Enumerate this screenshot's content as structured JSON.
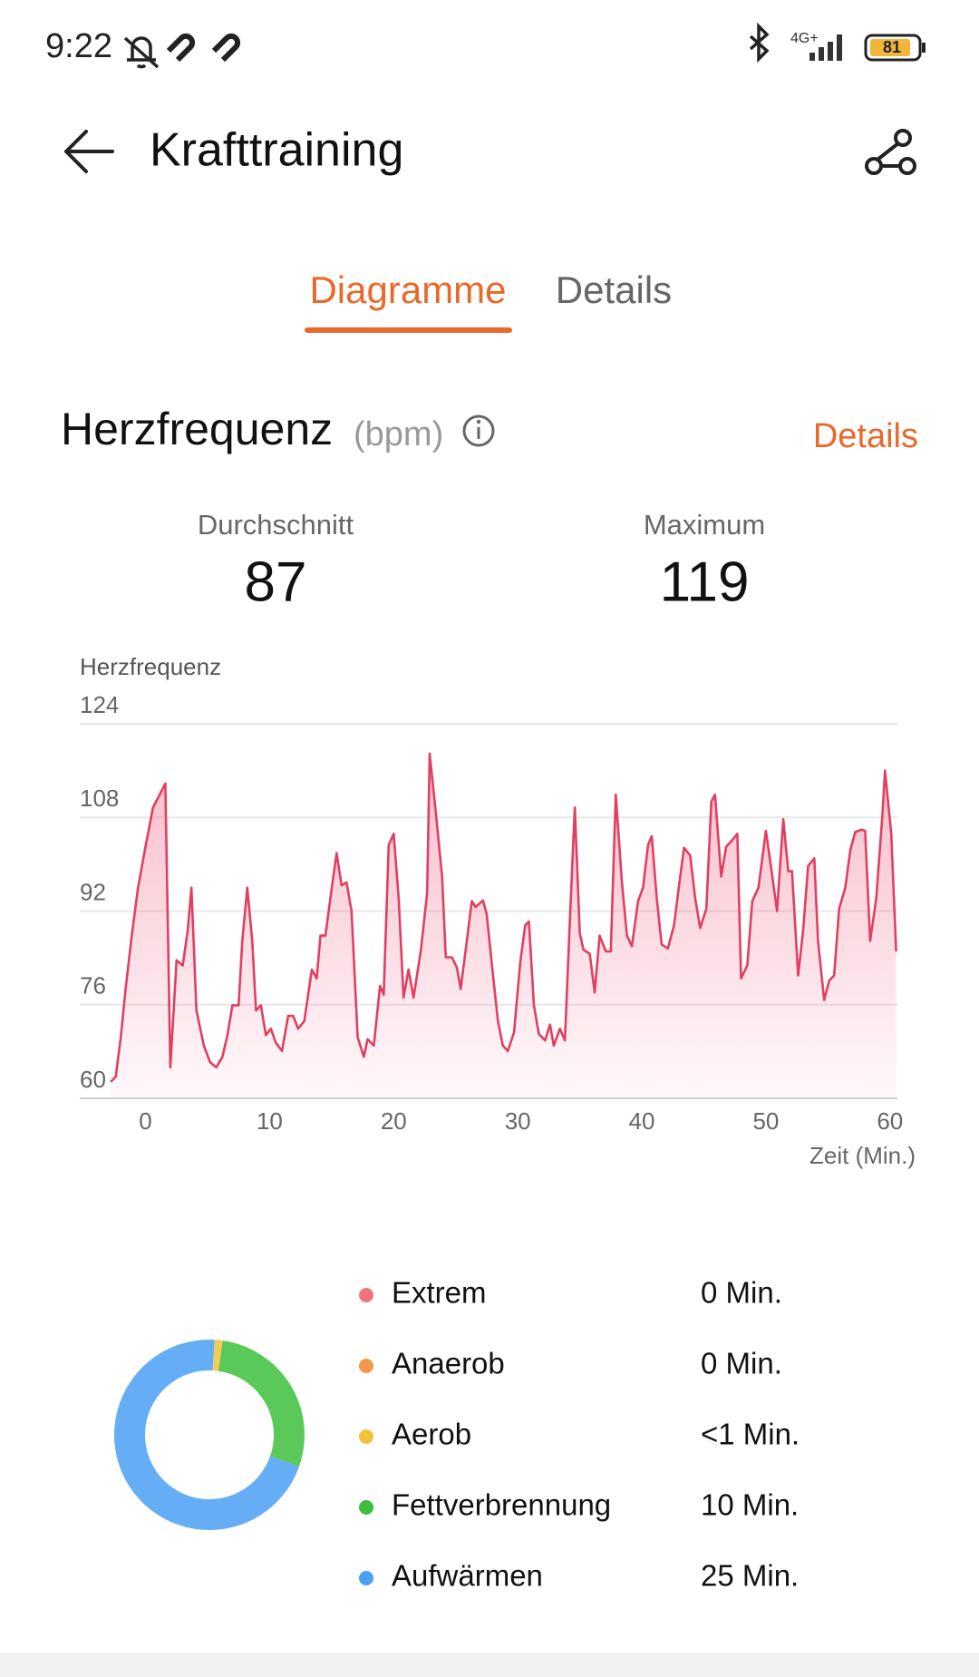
{
  "status_bar": {
    "time": "9:22",
    "network": "4G+",
    "battery": "81"
  },
  "header": {
    "title": "Krafttraining"
  },
  "tabs": [
    "Diagramme",
    "Details"
  ],
  "section": {
    "title": "Herzfrequenz",
    "unit": "(bpm)",
    "link": "Details"
  },
  "stats": [
    {
      "label": "Durchschnitt",
      "value": 87
    },
    {
      "label": "Maximum",
      "value": 119
    }
  ],
  "chart_data": [
    {
      "type": "line",
      "y_label": "Herzfrequenz",
      "x_label": "Zeit (Min.)",
      "color": "#e0405f",
      "xlim": [
        -5.3,
        60.6
      ],
      "ylim": [
        60,
        124
      ],
      "xticks": [
        0,
        10,
        20,
        30,
        40,
        50,
        60
      ],
      "yticks": [
        60,
        76,
        92,
        108,
        124
      ],
      "grid": true,
      "x": [
        -2.8,
        -2.4,
        -2.0,
        -1.6,
        -1.1,
        -0.6,
        0.0,
        0.6,
        1.6,
        2.0,
        2.5,
        3.0,
        3.4,
        3.7,
        4.1,
        4.7,
        5.2,
        5.7,
        6.2,
        6.6,
        7.0,
        7.5,
        7.8,
        8.2,
        8.6,
        8.9,
        9.3,
        9.7,
        10.1,
        10.5,
        11.0,
        11.5,
        11.9,
        12.3,
        12.8,
        13.4,
        13.8,
        14.1,
        14.5,
        14.9,
        15.4,
        15.8,
        16.2,
        16.6,
        17.1,
        17.6,
        17.9,
        18.4,
        18.9,
        19.2,
        19.6,
        20.0,
        20.4,
        20.8,
        21.2,
        21.6,
        22.2,
        22.7,
        22.9,
        23.4,
        23.9,
        24.2,
        24.7,
        25.1,
        25.4,
        25.9,
        26.3,
        26.6,
        27.2,
        27.5,
        27.9,
        28.4,
        28.8,
        29.2,
        29.7,
        30.2,
        30.6,
        30.9,
        31.3,
        31.7,
        32.2,
        32.6,
        32.9,
        33.4,
        33.8,
        34.2,
        34.6,
        35.0,
        35.3,
        35.8,
        36.2,
        36.6,
        37.1,
        37.5,
        37.9,
        38.4,
        38.8,
        39.2,
        39.7,
        40.1,
        40.5,
        40.8,
        41.2,
        41.6,
        42.1,
        42.6,
        43.0,
        43.4,
        43.9,
        44.3,
        44.7,
        45.2,
        45.6,
        45.9,
        46.4,
        46.8,
        47.2,
        47.7,
        48.0,
        48.5,
        48.9,
        49.4,
        50.0,
        50.4,
        50.9,
        51.4,
        51.8,
        52.1,
        52.6,
        53.0,
        53.4,
        53.9,
        54.2,
        54.7,
        55.1,
        55.5,
        55.9,
        56.4,
        56.8,
        57.2,
        57.7,
        58.0,
        58.4,
        58.9,
        59.4,
        59.6,
        60.1,
        60.5
      ],
      "values": [
        62.8,
        63.7,
        70.4,
        78.7,
        88.0,
        96.0,
        103,
        109.7,
        113.8,
        65.3,
        83.6,
        82.7,
        88.7,
        96,
        75,
        69,
        66.2,
        65.3,
        67.1,
        70.8,
        75.9,
        75.9,
        86.9,
        96,
        86.9,
        75,
        75.9,
        70.8,
        71.9,
        69.5,
        68.1,
        74.1,
        74.1,
        71.9,
        73.2,
        82,
        80.5,
        87.8,
        87.8,
        94.2,
        101.9,
        96.4,
        96.9,
        92,
        70.4,
        67.1,
        70.1,
        69,
        79.2,
        77.7,
        103.3,
        105.2,
        94.2,
        77.2,
        82,
        77.2,
        85.4,
        95.1,
        118.9,
        108.8,
        97.9,
        84.1,
        84.1,
        82.3,
        78.7,
        86.9,
        93.7,
        92.7,
        93.8,
        91.5,
        83.2,
        73.2,
        69,
        68.1,
        71.3,
        83.2,
        89.6,
        90.2,
        75.9,
        71,
        69.9,
        72.6,
        69,
        71.9,
        69.9,
        90.5,
        109.7,
        88.2,
        85.4,
        84.7,
        78.1,
        87.8,
        85.1,
        85.1,
        111.9,
        96.9,
        87.8,
        86,
        93.7,
        96,
        103.3,
        104.8,
        94.2,
        86.3,
        85.6,
        89.6,
        96.4,
        102.8,
        101.5,
        94.2,
        89.1,
        92.4,
        110.7,
        111.9,
        97.9,
        103,
        103.9,
        105.2,
        80.5,
        82.7,
        93.7,
        96,
        105.7,
        99.7,
        92,
        107.7,
        98.8,
        98.8,
        81,
        88.7,
        99.7,
        101,
        86.9,
        76.8,
        80.1,
        81,
        92.4,
        96,
        102.4,
        105.5,
        105.9,
        105.7,
        86.9,
        94.2,
        108.8,
        116,
        105.2,
        85.1
      ]
    },
    {
      "type": "pie",
      "categories": [
        "Extrem",
        "Anaerob",
        "Aerob",
        "Fettverbrennung",
        "Aufwärmen"
      ],
      "values": [
        0,
        0,
        0.5,
        10,
        25
      ],
      "value_labels": [
        "0 Min.",
        "0 Min.",
        "<1 Min.",
        "10 Min.",
        "25 Min."
      ],
      "colors": [
        "#f0737f",
        "#f09a4a",
        "#f0c23c",
        "#3dbf3d",
        "#4aa0f5"
      ]
    }
  ]
}
